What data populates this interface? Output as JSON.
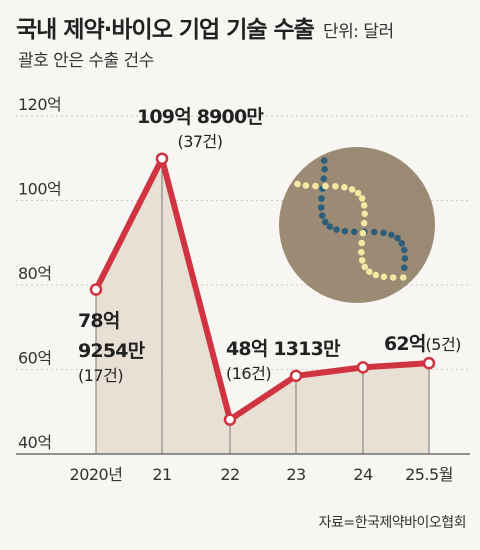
{
  "header": {
    "title": "국내 제약·바이오 기업 기술 수출",
    "unit": "단위: 달러",
    "subtitle": "괄호 안은 수출 건수"
  },
  "source": "자료=한국제약바이오협회",
  "colors": {
    "line": "#cf3440",
    "area": "#e6dcd0",
    "background": "#f7f6f2",
    "circle": "#9b8a74",
    "dna_dark": "#2e5f7a",
    "dna_light": "#f4e8a2"
  },
  "decoration": {
    "icon": "dna-helix-icon"
  },
  "chart_data": {
    "type": "line",
    "title": "국내 제약·바이오 기업 기술 수출",
    "unit": "단위: 달러",
    "categories": [
      "2020년",
      "21",
      "22",
      "23",
      "24",
      "25.5월"
    ],
    "values": [
      78.9254,
      109.89,
      48.1313,
      58.5,
      60.5,
      61.5
    ],
    "counts": [
      17,
      37,
      16,
      null,
      null,
      5
    ],
    "y_ticks": [
      "40억",
      "60억",
      "80억",
      "100억",
      "120억"
    ],
    "y_tick_values": [
      40,
      60,
      80,
      100,
      120
    ],
    "ylim": [
      40,
      120
    ],
    "area_fill": true,
    "labels": [
      {
        "index": 0,
        "lines": [
          "78억",
          "9254만"
        ],
        "sub": "(17건)"
      },
      {
        "index": 1,
        "lines": [
          "109억 8900만"
        ],
        "sub": "(37건)"
      },
      {
        "index": 2,
        "lines": [
          "48억 1313만"
        ],
        "sub": "(16건)"
      },
      {
        "index": 5,
        "lines": [
          "62억"
        ],
        "sub": "(5건)"
      }
    ]
  }
}
